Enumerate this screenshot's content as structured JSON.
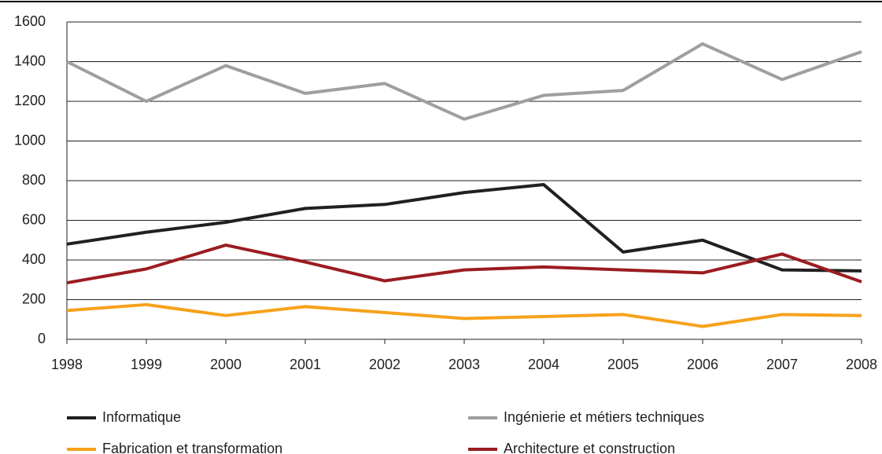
{
  "chart_data": {
    "type": "line",
    "categories": [
      "1998",
      "1999",
      "2000",
      "2001",
      "2002",
      "2003",
      "2004",
      "2005",
      "2006",
      "2007",
      "2008"
    ],
    "series": [
      {
        "name": "Informatique",
        "color": "#231f20",
        "values": [
          480,
          540,
          590,
          660,
          680,
          740,
          780,
          440,
          500,
          350,
          345
        ]
      },
      {
        "name": "Ingénierie et métiers techniques",
        "color": "#9d9fa2",
        "values": [
          1400,
          1200,
          1380,
          1240,
          1290,
          1110,
          1230,
          1255,
          1490,
          1310,
          1450
        ]
      },
      {
        "name": "Fabrication et transformation",
        "color": "#f7a11a",
        "values": [
          145,
          175,
          120,
          165,
          135,
          105,
          115,
          125,
          65,
          125,
          120
        ]
      },
      {
        "name": "Architecture et construction",
        "color": "#9b1c20",
        "values": [
          285,
          355,
          475,
          390,
          295,
          350,
          365,
          350,
          335,
          430,
          290
        ]
      }
    ],
    "ylim": [
      0,
      1600
    ],
    "yticks": [
      0,
      200,
      400,
      600,
      800,
      1000,
      1200,
      1400,
      1600
    ],
    "grid": true
  }
}
